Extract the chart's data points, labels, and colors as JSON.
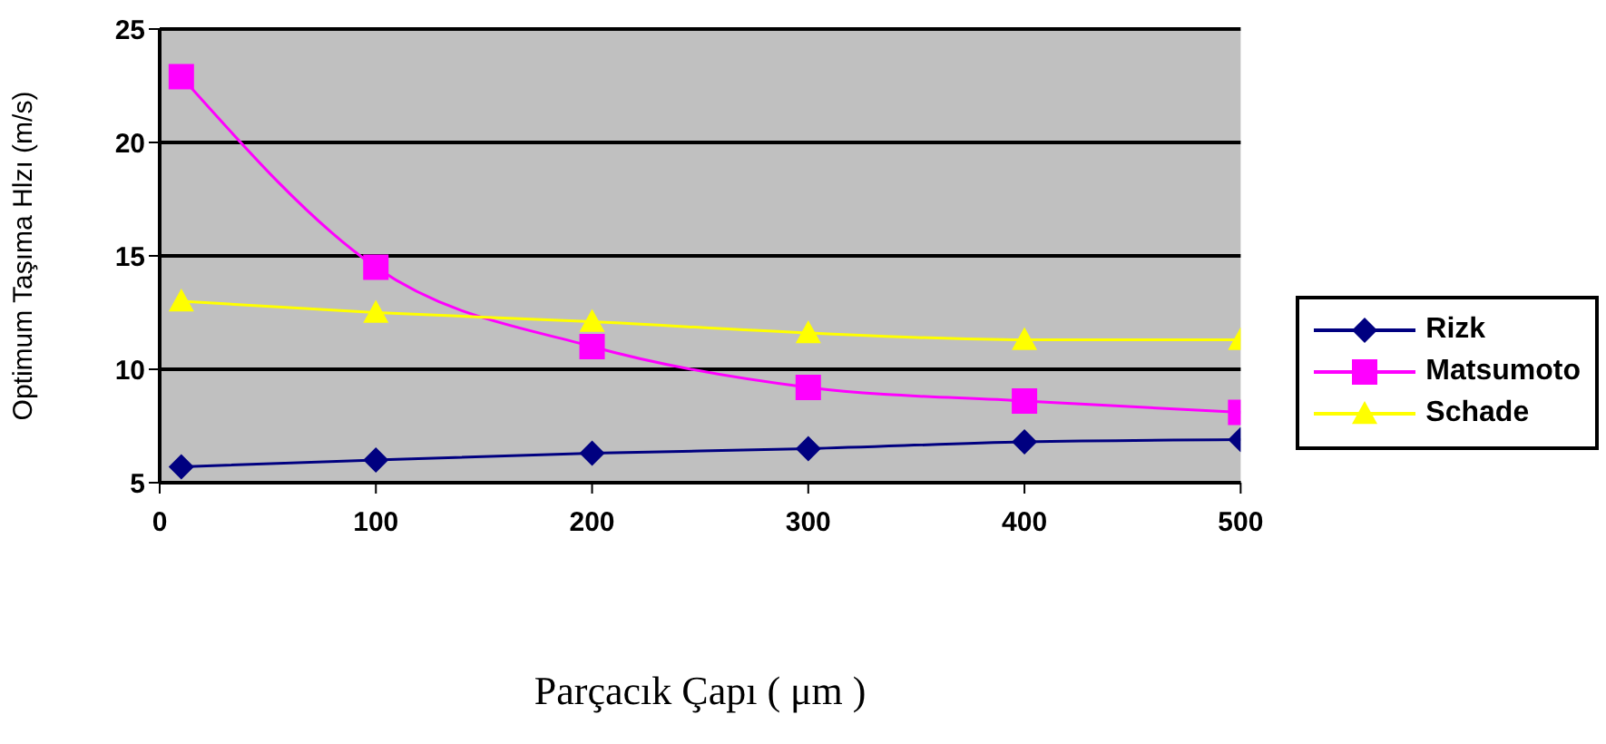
{
  "chart_data": {
    "type": "line",
    "xlabel": "Parçacık Çapı ( μm )",
    "ylabel": "Optimum Taşıma Hlzı (m/s)",
    "x": [
      10,
      100,
      200,
      300,
      400,
      500
    ],
    "series": [
      {
        "name": "Rizk",
        "color": "#000080",
        "marker": "diamond",
        "values": [
          5.7,
          6.0,
          6.3,
          6.5,
          6.8,
          6.9
        ]
      },
      {
        "name": "Matsumoto",
        "color": "#ff00ff",
        "marker": "square",
        "values": [
          22.9,
          14.5,
          11.0,
          9.2,
          8.6,
          8.1
        ]
      },
      {
        "name": "Schade",
        "color": "#ffff00",
        "marker": "triangle",
        "values": [
          13.0,
          12.5,
          12.1,
          11.6,
          11.3,
          11.3
        ]
      }
    ],
    "xlim": [
      0,
      500
    ],
    "xticks": [
      0,
      100,
      200,
      300,
      400,
      500
    ],
    "ylim": [
      5,
      25
    ],
    "yticks": [
      5,
      10,
      15,
      20,
      25
    ],
    "grid": "y",
    "legend": "right"
  }
}
